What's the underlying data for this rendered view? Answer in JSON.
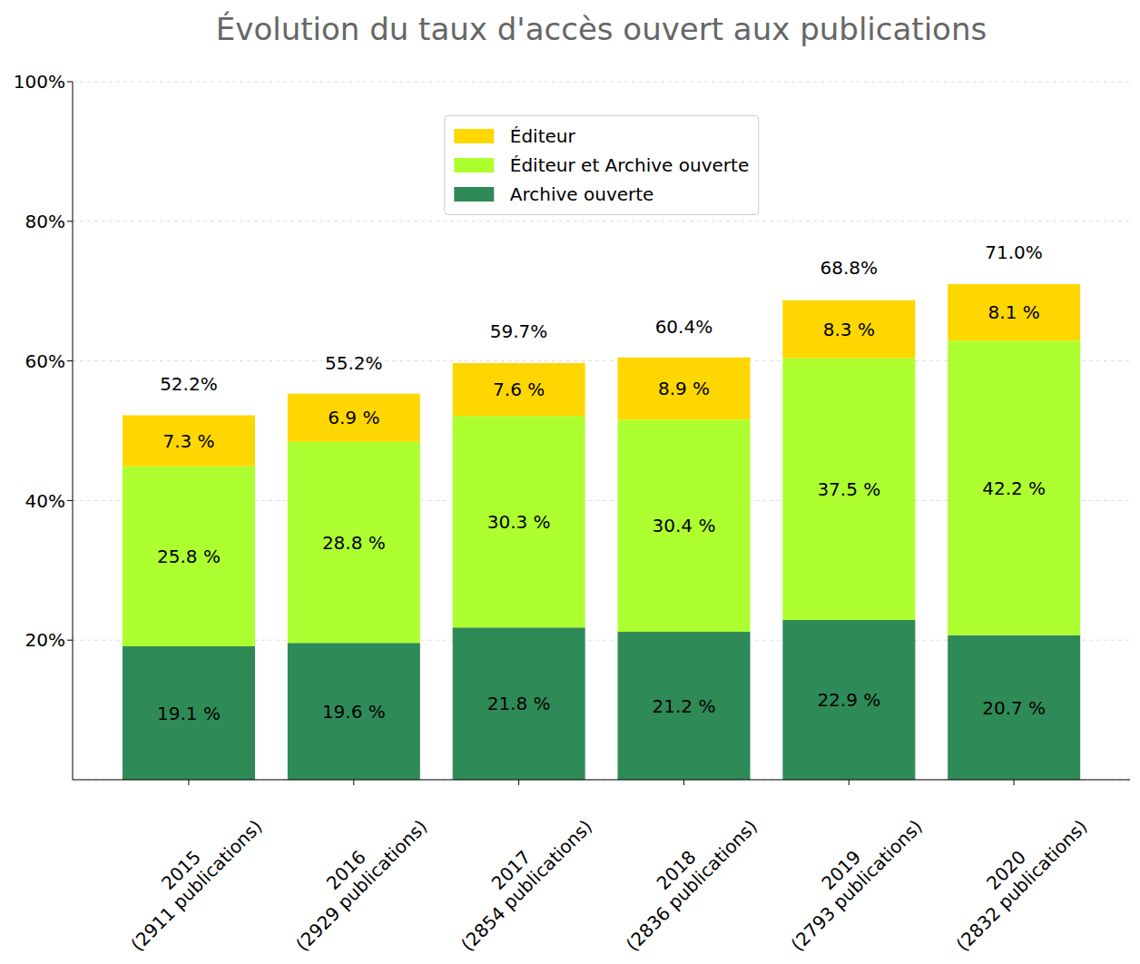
{
  "chart_data": {
    "type": "bar",
    "title": "Évolution du taux d'accès ouvert aux publications",
    "categories": [
      "2015\n(2911 publications)",
      "2016\n(2929 publications)",
      "2017\n(2854 publications)",
      "2018\n(2836 publications)",
      "2019\n(2793 publications)",
      "2020\n(2832 publications)"
    ],
    "series": [
      {
        "name": "Archive ouverte",
        "color": "#2e8b57",
        "values": [
          19.1,
          19.6,
          21.8,
          21.2,
          22.9,
          20.7
        ],
        "value_labels": [
          "19.1 %",
          "19.6 %",
          "21.8 %",
          "21.2 %",
          "22.9 %",
          "20.7 %"
        ]
      },
      {
        "name": "Éditeur et Archive ouverte",
        "color": "#adff2f",
        "values": [
          25.8,
          28.8,
          30.3,
          30.4,
          37.5,
          42.2
        ],
        "value_labels": [
          "25.8 %",
          "28.8 %",
          "30.3 %",
          "30.4 %",
          "37.5 %",
          "42.2 %"
        ]
      },
      {
        "name": "Éditeur",
        "color": "#ffd700",
        "values": [
          7.3,
          6.9,
          7.6,
          8.9,
          8.3,
          8.1
        ],
        "value_labels": [
          "7.3 %",
          "6.9 %",
          "7.6 %",
          "8.9 %",
          "8.3 %",
          "8.1 %"
        ]
      }
    ],
    "totals": [
      52.2,
      55.2,
      59.7,
      60.4,
      68.8,
      71.0
    ],
    "total_labels": [
      "52.2%",
      "55.2%",
      "59.7%",
      "60.4%",
      "68.8%",
      "71.0%"
    ],
    "ylim": [
      0,
      100
    ],
    "yticks": [
      {
        "value": 20,
        "label": "20%"
      },
      {
        "value": 40,
        "label": "40%"
      },
      {
        "value": 60,
        "label": "60%"
      },
      {
        "value": 80,
        "label": "80%"
      },
      {
        "value": 100,
        "label": "100%"
      }
    ],
    "stacked": true,
    "data_labels": true,
    "grid": true,
    "legend": "upper center"
  }
}
